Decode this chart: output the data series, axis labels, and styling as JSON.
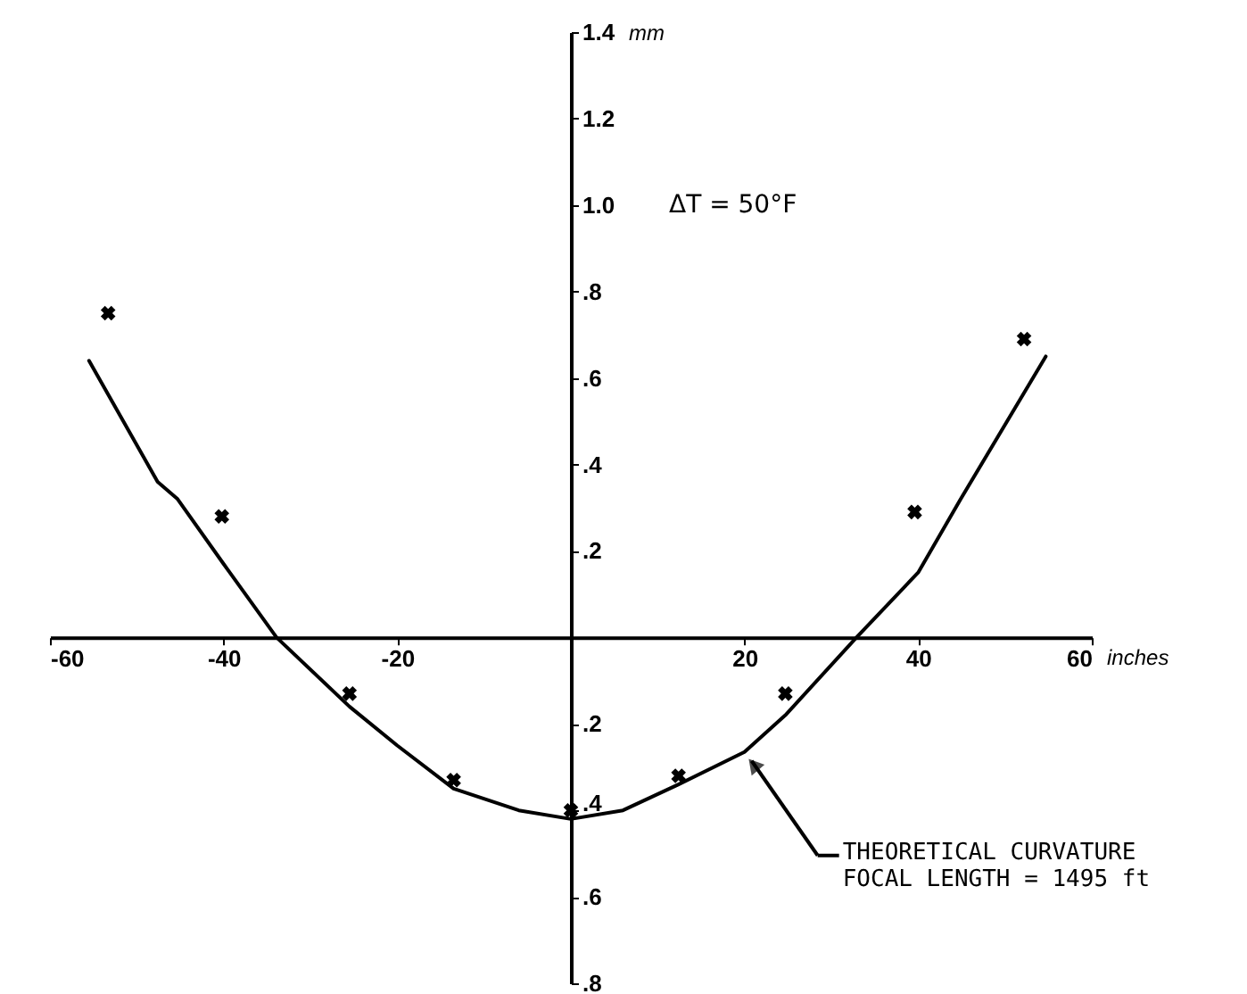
{
  "chart_data": {
    "type": "line",
    "xlabel": "inches",
    "ylabel": "mm",
    "xlim": [
      -60,
      60
    ],
    "ylim": [
      -0.8,
      1.4
    ],
    "xticks": [
      -60,
      -40,
      -20,
      20,
      40,
      60
    ],
    "yticks": [
      {
        "value": -0.8,
        "label": ".8"
      },
      {
        "value": -0.6,
        "label": ".6"
      },
      {
        "value": -0.4,
        "label": ".4"
      },
      {
        "value": -0.2,
        "label": ".2"
      },
      {
        "value": 0.2,
        "label": ".2"
      },
      {
        "value": 0.4,
        "label": ".4"
      },
      {
        "value": 0.6,
        "label": ".6"
      },
      {
        "value": 0.8,
        "label": ".8"
      },
      {
        "value": 1.0,
        "label": "1.0"
      },
      1.2,
      1.4
    ],
    "grid": false,
    "series": [
      {
        "color": "#000000",
        "marker": "none",
        "line_style": "solid",
        "x": [
          -55.5,
          -47.6,
          -45.3,
          -40,
          -33.9,
          -25.5,
          -20,
          -13.5,
          -6,
          0,
          6,
          12.4,
          20,
          24.7,
          32.9,
          40,
          44.9,
          54.7
        ],
        "values": [
          0.64,
          0.36,
          0.32,
          0.17,
          0,
          -0.16,
          -0.25,
          -0.35,
          -0.4,
          -0.42,
          -0.4,
          -0.34,
          -0.265,
          -0.18,
          0,
          0.15,
          0.32,
          0.65
        ]
      },
      {
        "type": "scatter",
        "color": "#000000",
        "marker": "cross",
        "x": [
          -53.3,
          -40.2,
          -25.5,
          -13.5,
          0,
          12.4,
          24.7,
          39.6,
          52.2
        ],
        "values": [
          0.75,
          0.28,
          -0.13,
          -0.33,
          -0.4,
          -0.32,
          -0.13,
          0.29,
          0.69
        ]
      }
    ],
    "annotations": [
      "ΔT = 50°F",
      {
        "text": "THEORETICAL CURVATURE\nFOCAL LENGTH = 1495 ft",
        "x": 20,
        "y": -0.265
      }
    ]
  }
}
